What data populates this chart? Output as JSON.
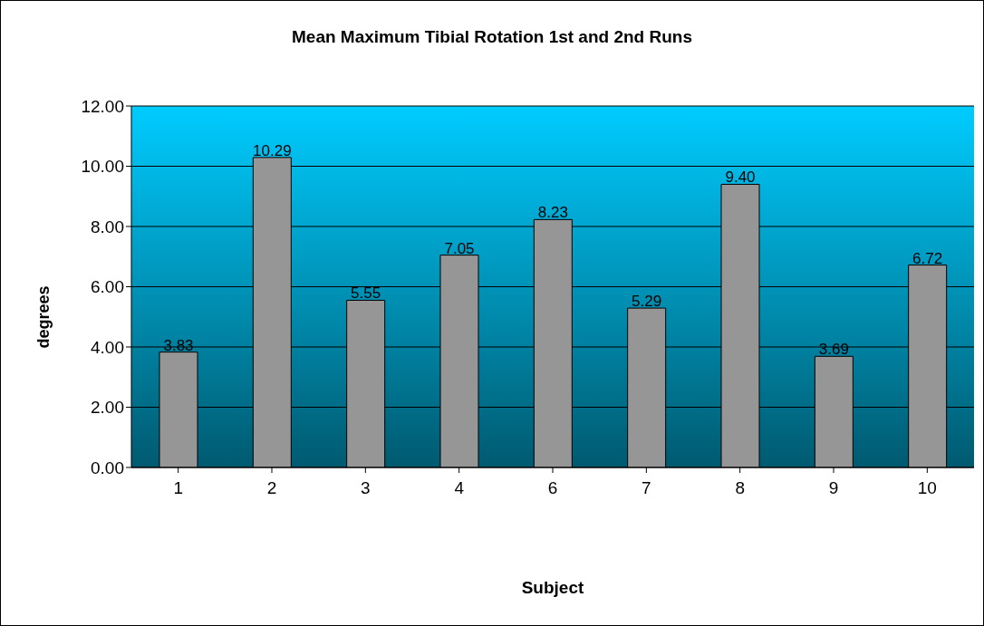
{
  "chart_data": {
    "type": "bar",
    "title": "Mean Maximum Tibial Rotation 1st and 2nd Runs",
    "xlabel": "Subject",
    "ylabel": "degrees",
    "categories": [
      "1",
      "2",
      "3",
      "4",
      "6",
      "7",
      "8",
      "9",
      "10"
    ],
    "values": [
      3.83,
      10.29,
      5.55,
      7.05,
      8.23,
      5.29,
      9.4,
      3.69,
      6.72
    ],
    "value_labels": [
      "3.83",
      "10.29",
      "5.55",
      "7.05",
      "8.23",
      "5.29",
      "9.40",
      "3.69",
      "6.72"
    ],
    "color": "#969696",
    "ylim": [
      0,
      12
    ],
    "yticks": [
      {
        "value": 0,
        "label": "0.00"
      },
      {
        "value": 2,
        "label": "2.00"
      },
      {
        "value": 4,
        "label": "4.00"
      },
      {
        "value": 6,
        "label": "6.00"
      },
      {
        "value": 8,
        "label": "8.00"
      },
      {
        "value": 10,
        "label": "10.00"
      },
      {
        "value": 12,
        "label": "12.00"
      }
    ],
    "grid": "y"
  }
}
